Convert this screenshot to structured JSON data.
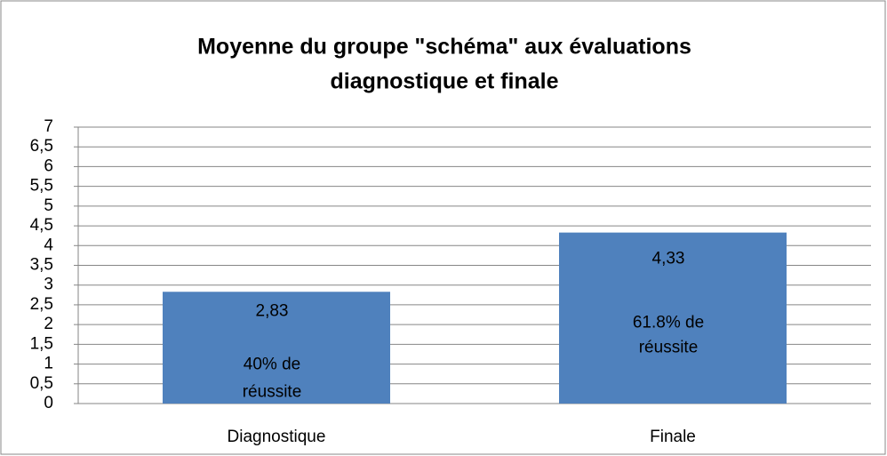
{
  "chart_data": {
    "type": "bar",
    "title": [
      "Moyenne du groupe \"schéma\" aux évaluations",
      "diagnostique et finale"
    ],
    "categories": [
      "Diagnostique",
      "Finale"
    ],
    "values": [
      2.83,
      4.33
    ],
    "value_labels": [
      "2,83",
      "4,33"
    ],
    "annotations": [
      [
        "40% de",
        "réussite"
      ],
      [
        "61.8% de",
        "réussite"
      ]
    ],
    "color": "#4f81bd",
    "ylim": [
      0,
      7
    ],
    "yticks": [
      0,
      {
        "value": 0.5,
        "label": "0,5"
      },
      1,
      {
        "value": 1.5,
        "label": "1,5"
      },
      2,
      {
        "value": 2.5,
        "label": "2,5"
      },
      3,
      {
        "value": 3.5,
        "label": "3,5"
      },
      4,
      {
        "value": 4.5,
        "label": "4,5"
      },
      5,
      {
        "value": 5.5,
        "label": "5,5"
      },
      6,
      {
        "value": 6.5,
        "label": "6,5"
      },
      7
    ],
    "grid": true
  }
}
